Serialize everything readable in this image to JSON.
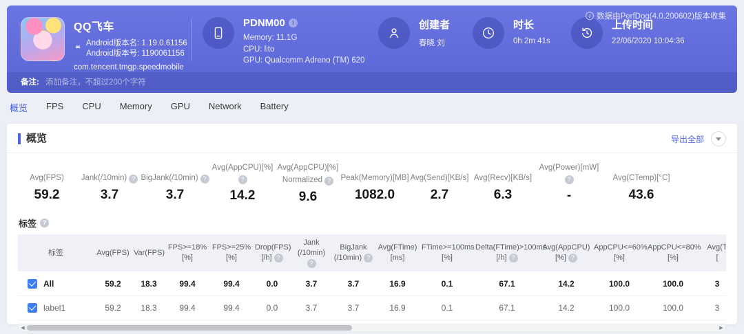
{
  "banner": {
    "app": {
      "name": "QQ飞车",
      "version_name": "Android版本名: 1.19.0.61156",
      "version_code": "Android版本号: 1190061156",
      "package": "com.tencent.tmgp.speedmobile"
    },
    "device": {
      "name": "PDNM00",
      "memory": "Memory: 11.1G",
      "cpu": "CPU: lito",
      "gpu": "GPU: Qualcomm Adreno (TM) 620"
    },
    "creator": {
      "label": "创建者",
      "value": "春晓 刘"
    },
    "duration": {
      "label": "时长",
      "value": "0h 2m 41s"
    },
    "upload": {
      "label": "上传时间",
      "value": "22/06/2020 10:04:36"
    },
    "collector_note": "数据由PerfDog(4.0.200602)版本收集",
    "remark": {
      "label": "备注:",
      "placeholder": "添加备注，不超过200个字符"
    }
  },
  "tabs": [
    {
      "id": "overview",
      "label": "概览",
      "active": true
    },
    {
      "id": "fps",
      "label": "FPS"
    },
    {
      "id": "cpu",
      "label": "CPU"
    },
    {
      "id": "memory",
      "label": "Memory"
    },
    {
      "id": "gpu",
      "label": "GPU"
    },
    {
      "id": "network",
      "label": "Network"
    },
    {
      "id": "battery",
      "label": "Battery"
    }
  ],
  "overview": {
    "section_title": "概览",
    "export_label": "导出全部",
    "stats": [
      {
        "l1": "Avg(FPS)",
        "value": "59.2",
        "info": false
      },
      {
        "l1": "Jank(/10min)",
        "value": "3.7",
        "info": true
      },
      {
        "l1": "BigJank(/10min)",
        "value": "3.7",
        "info": true
      },
      {
        "l1": "Avg(AppCPU)[%]",
        "value": "14.2",
        "info": true
      },
      {
        "l1": "Avg(AppCPU)[%]",
        "l2": "Normalized",
        "value": "9.6",
        "info": true
      },
      {
        "l1": "Peak(Memory)[MB]",
        "value": "1082.0",
        "info": false
      },
      {
        "l1": "Avg(Send)[KB/s]",
        "value": "2.7",
        "info": false
      },
      {
        "l1": "Avg(Recv)[KB/s]",
        "value": "6.3",
        "info": false
      },
      {
        "l1": "Avg(Power)[mW]",
        "value": "-",
        "info": true
      },
      {
        "l1": "Avg(CTemp)[°C]",
        "value": "43.6",
        "info": false
      }
    ]
  },
  "labels": {
    "title": "标签",
    "table": {
      "columns": [
        {
          "l1": "标签"
        },
        {
          "l1": "Avg(FPS)"
        },
        {
          "l1": "Var(FPS)"
        },
        {
          "l1": "FPS>=18%",
          "l2": "[%]"
        },
        {
          "l1": "FPS>=25%",
          "l2": "[%]"
        },
        {
          "l1": "Drop(FPS)",
          "l2": "[/h]",
          "info": true
        },
        {
          "l1": "Jank",
          "l2": "(/10min)",
          "info": true
        },
        {
          "l1": "BigJank",
          "l2": "(/10min)",
          "info": true
        },
        {
          "l1": "Avg(FTime)",
          "l2": "[ms]"
        },
        {
          "l1": "FTime>=100ms",
          "l2": "[%]"
        },
        {
          "l1": "Delta(FTime)>100ms",
          "l2": "[/h]",
          "info": true
        },
        {
          "l1": "Avg(AppCPU)",
          "l2": "[%]",
          "info": true
        },
        {
          "l1": "AppCPU<=60%",
          "l2": "[%]"
        },
        {
          "l1": "AppCPU<=80%",
          "l2": "[%]"
        },
        {
          "l1": "Avg(T",
          "l2": "["
        }
      ],
      "rows": [
        {
          "label": "All",
          "bold": true,
          "checked": true,
          "values": [
            "59.2",
            "18.3",
            "99.4",
            "99.4",
            "0.0",
            "3.7",
            "3.7",
            "16.9",
            "0.1",
            "67.1",
            "14.2",
            "100.0",
            "100.0",
            "3"
          ]
        },
        {
          "label": "label1",
          "bold": false,
          "checked": true,
          "values": [
            "59.2",
            "18.3",
            "99.4",
            "99.4",
            "0.0",
            "3.7",
            "3.7",
            "16.9",
            "0.1",
            "67.1",
            "14.2",
            "100.0",
            "100.0",
            "3"
          ]
        }
      ]
    }
  },
  "colors": {
    "banner": "#5f6bd8",
    "accent": "#4d63e2",
    "link": "#5468ef",
    "checkbox": "#3d7ef5"
  }
}
